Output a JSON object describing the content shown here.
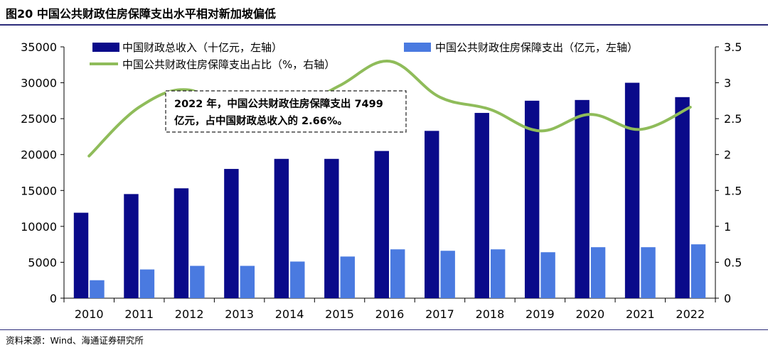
{
  "figure": {
    "title": "图20 中国公共财政住房保障支出水平相对新加坡偏低",
    "source": "资料来源：Wind、海通证券研究所"
  },
  "chart_data": {
    "type": "bar",
    "categories": [
      "2010",
      "2011",
      "2012",
      "2013",
      "2014",
      "2015",
      "2016",
      "2017",
      "2018",
      "2019",
      "2020",
      "2021",
      "2022"
    ],
    "series": [
      {
        "name": "中国财政总收入（十亿元，左轴）",
        "kind": "bar",
        "axis": "left",
        "color": "#0a0a8a",
        "values": [
          11900,
          14500,
          15300,
          18000,
          19400,
          19400,
          20500,
          23300,
          25800,
          27500,
          27600,
          30000,
          28000
        ]
      },
      {
        "name": "中国公共财政住房保障支出（亿元，左轴）",
        "kind": "bar",
        "axis": "left",
        "color": "#4a7ae0",
        "values": [
          2500,
          4000,
          4500,
          4500,
          5100,
          5800,
          6800,
          6600,
          6800,
          6400,
          7100,
          7100,
          7499
        ]
      },
      {
        "name": "中国公共财政住房保障支出占比（%，右轴）",
        "kind": "line",
        "axis": "right",
        "color": "#8fbc5a",
        "values": [
          1.98,
          2.66,
          2.9,
          2.5,
          2.6,
          2.96,
          3.3,
          2.8,
          2.63,
          2.33,
          2.56,
          2.35,
          2.66
        ]
      }
    ],
    "y_left": {
      "min": 0,
      "max": 35000,
      "ticks": [
        "0",
        "5000",
        "10000",
        "15000",
        "20000",
        "25000",
        "30000",
        "35000"
      ]
    },
    "y_right": {
      "min": 0,
      "max": 3.5,
      "ticks": [
        "0",
        "0.5",
        "1",
        "1.5",
        "2",
        "2.5",
        "3",
        "3.5"
      ]
    },
    "annotation": {
      "line1": "2022 年，中国公共财政住房保障支出 7499",
      "line2": "亿元，占中国财政总收入的 2.66%。"
    },
    "legend_position": "top",
    "grid": false
  }
}
